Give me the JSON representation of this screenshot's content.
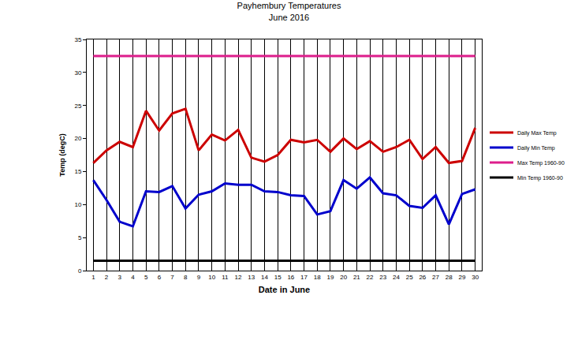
{
  "chart_data": {
    "type": "line",
    "title": "Payhembury Temperatures",
    "subtitle": "June 2016",
    "x_label": "Date in June",
    "y_label": "Temp (degC)",
    "categories": [
      1,
      2,
      3,
      4,
      5,
      6,
      7,
      8,
      9,
      10,
      11,
      12,
      13,
      14,
      15,
      16,
      17,
      18,
      19,
      20,
      21,
      22,
      23,
      24,
      25,
      26,
      27,
      28,
      29,
      30
    ],
    "series": [
      {
        "name": "Daily Max Temp",
        "color": "#cc0000",
        "values": [
          16.3,
          18.2,
          19.5,
          18.7,
          24.2,
          21.2,
          23.8,
          24.5,
          18.2,
          20.6,
          19.7,
          21.3,
          17.1,
          16.5,
          17.5,
          19.8,
          19.4,
          19.8,
          18.0,
          20.0,
          18.4,
          19.6,
          18.0,
          18.7,
          19.8,
          16.9,
          18.7,
          16.3,
          16.6,
          21.6
        ]
      },
      {
        "name": "Daily Min Temp",
        "color": "#0000cc",
        "values": [
          13.7,
          10.7,
          7.4,
          6.7,
          12.0,
          11.9,
          12.8,
          9.4,
          11.5,
          12.0,
          13.2,
          13.0,
          13.0,
          12.0,
          11.9,
          11.4,
          11.3,
          8.5,
          9.0,
          13.7,
          12.4,
          14.1,
          11.7,
          11.4,
          9.8,
          9.5,
          11.4,
          7.0,
          11.6,
          12.3
        ]
      },
      {
        "name": "Max Temp 1960-90",
        "color": "#dd1e8c",
        "values": [
          32.5,
          32.5,
          32.5,
          32.5,
          32.5,
          32.5,
          32.5,
          32.5,
          32.5,
          32.5,
          32.5,
          32.5,
          32.5,
          32.5,
          32.5,
          32.5,
          32.5,
          32.5,
          32.5,
          32.5,
          32.5,
          32.5,
          32.5,
          32.5,
          32.5,
          32.5,
          32.5,
          32.5,
          32.5,
          32.5
        ]
      },
      {
        "name": "Min Temp 1960-90",
        "color": "#000000",
        "values": [
          1.5,
          1.5,
          1.5,
          1.5,
          1.5,
          1.5,
          1.5,
          1.5,
          1.5,
          1.5,
          1.5,
          1.5,
          1.5,
          1.5,
          1.5,
          1.5,
          1.5,
          1.5,
          1.5,
          1.5,
          1.5,
          1.5,
          1.5,
          1.5,
          1.5,
          1.5,
          1.5,
          1.5,
          1.5,
          1.5
        ]
      }
    ],
    "ylim": [
      0,
      35
    ],
    "yticks": [
      0,
      5,
      10,
      15,
      20,
      25,
      30,
      35
    ],
    "grid": "x",
    "legend": "right"
  }
}
